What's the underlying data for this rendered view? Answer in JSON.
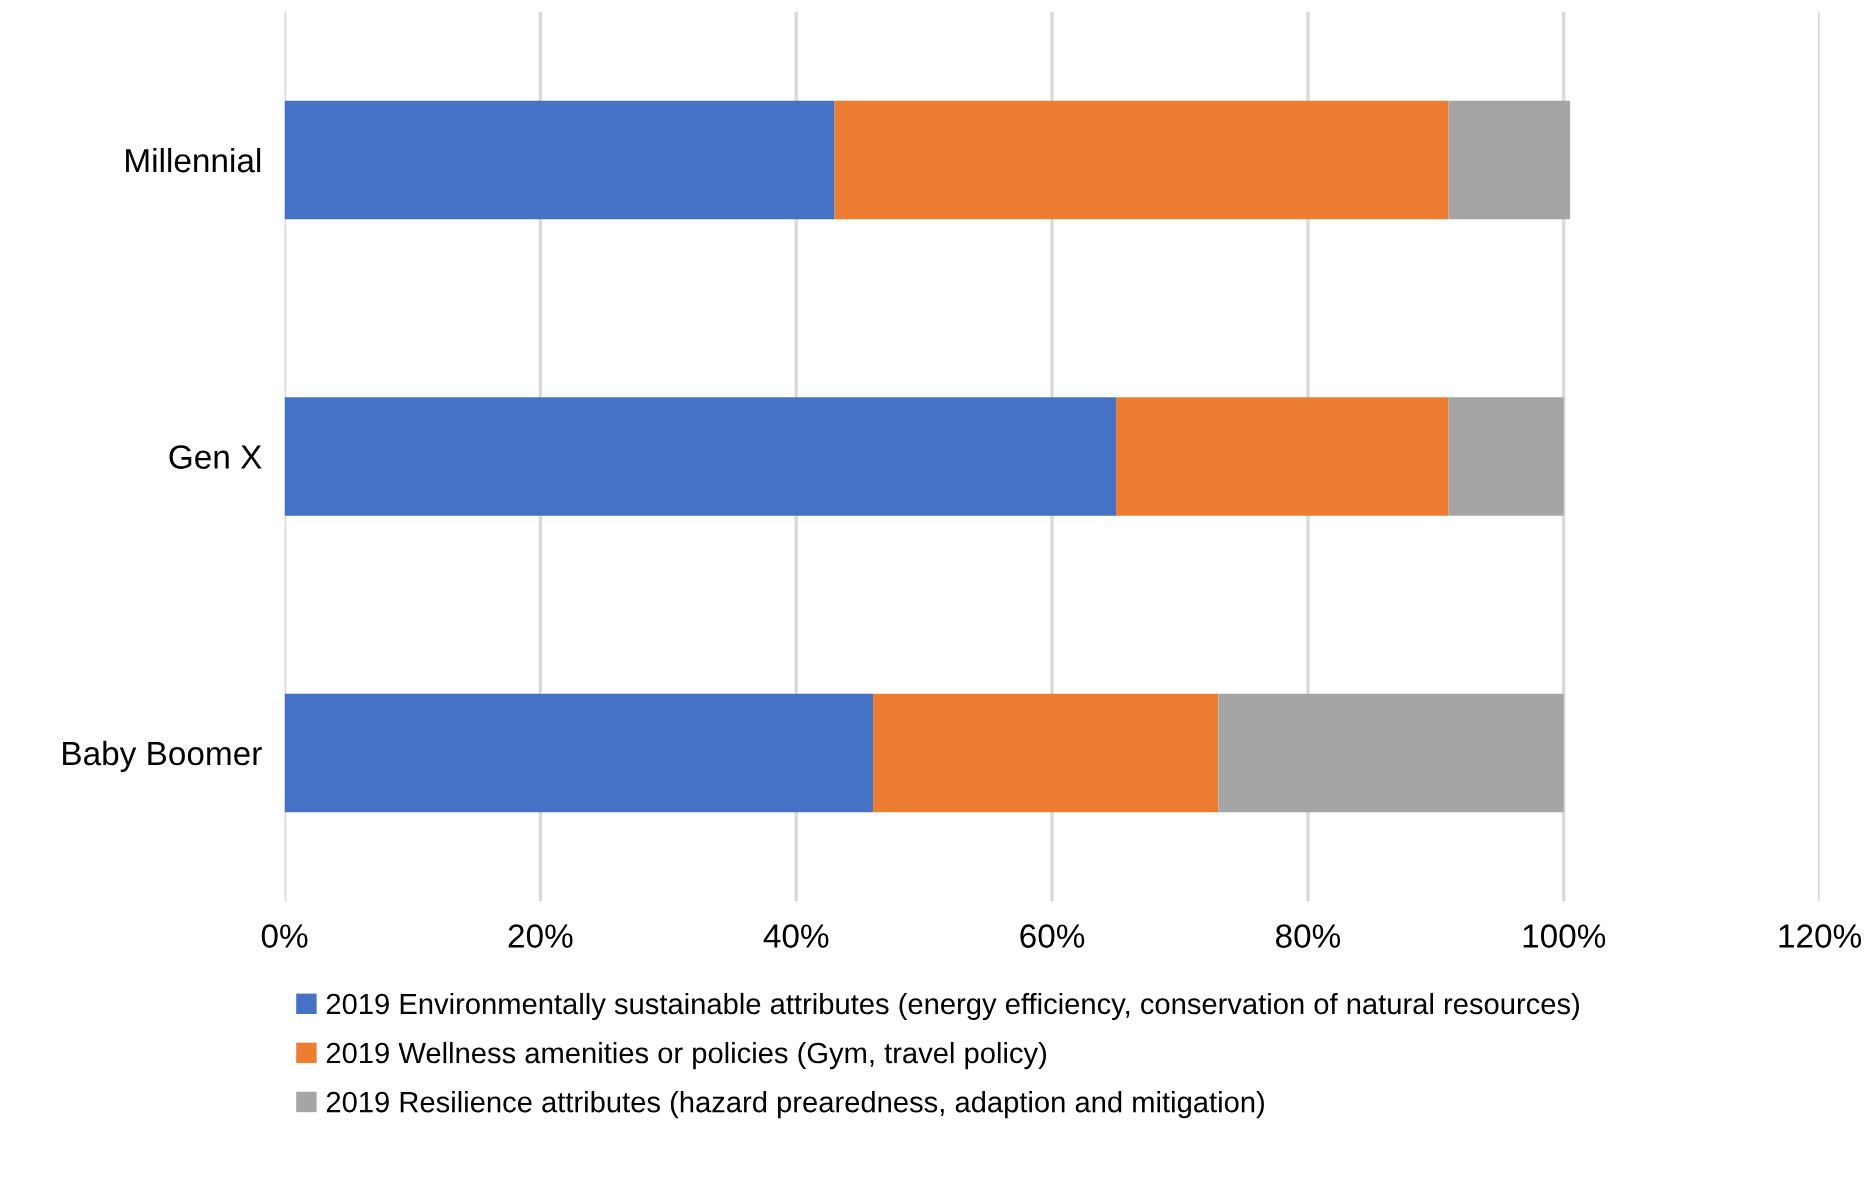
{
  "chart_data": {
    "type": "bar",
    "orientation": "horizontal",
    "stacked": true,
    "categories": [
      "Millennial",
      "Gen X",
      "Baby Boomer"
    ],
    "series": [
      {
        "name": "2019 Environmentally sustainable attributes (energy efficiency, conservation of natural resources)",
        "color": "#4472c4",
        "values": [
          43,
          65,
          46
        ]
      },
      {
        "name": "2019 Wellness amenities or policies (Gym, travel policy)",
        "color": "#ed7d31",
        "values": [
          48,
          26,
          27
        ]
      },
      {
        "name": "2019 Resilience attributes (hazard prearedness, adaption and mitigation)",
        "color": "#a5a5a5",
        "values": [
          9.5,
          9,
          27
        ]
      }
    ],
    "xlim": [
      0,
      120
    ],
    "xticks": [
      {
        "value": 0,
        "label": "0%"
      },
      {
        "value": 20,
        "label": "20%"
      },
      {
        "value": 40,
        "label": "40%"
      },
      {
        "value": 60,
        "label": "60%"
      },
      {
        "value": 80,
        "label": "80%"
      },
      {
        "value": 100,
        "label": "100%"
      },
      {
        "value": 120,
        "label": "120%"
      }
    ],
    "grid": "x",
    "legend": "bottom"
  }
}
